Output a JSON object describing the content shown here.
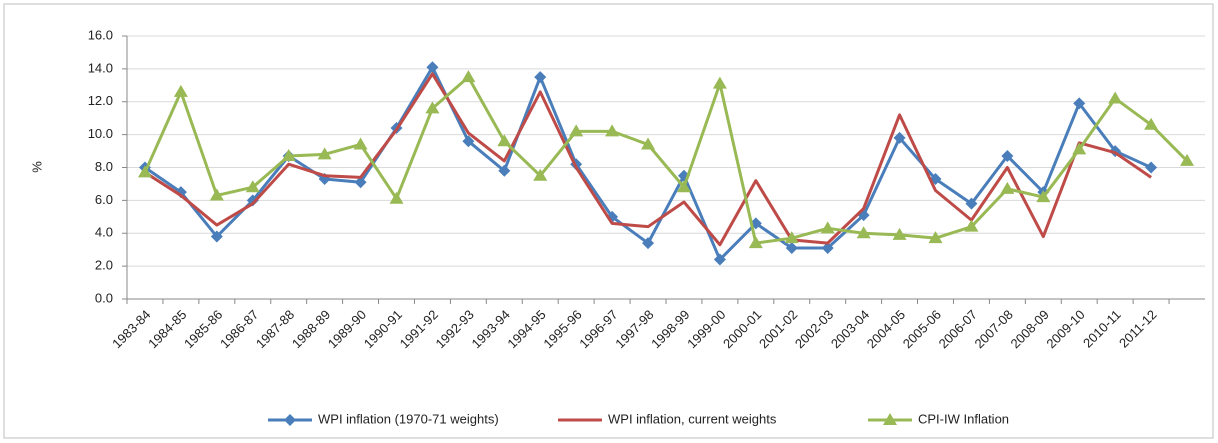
{
  "chart_data": {
    "type": "line",
    "y_label": "%",
    "categories": [
      "1983-84",
      "1984-85",
      "1985-86",
      "1986-87",
      "1987-88",
      "1988-89",
      "1989-90",
      "1990-91",
      "1991-92",
      "1992-93",
      "1993-94",
      "1994-95",
      "1995-96",
      "1996-97",
      "1997-98",
      "1998-99",
      "1999-00",
      "2000-01",
      "2001-02",
      "2002-03",
      "2003-04",
      "2004-05",
      "2005-06",
      "2006-07",
      "2007-08",
      "2008-09",
      "2009-10",
      "2010-11",
      "2011-12",
      null
    ],
    "series": [
      {
        "name": "WPI inflation (1970-71 weights)",
        "color": "#4a7ebb",
        "marker": "diamond",
        "values": [
          8.0,
          6.5,
          3.8,
          6.0,
          8.7,
          7.3,
          7.1,
          10.4,
          14.1,
          9.6,
          7.8,
          13.5,
          8.2,
          5.0,
          3.4,
          7.5,
          2.4,
          4.6,
          3.1,
          3.1,
          5.1,
          9.8,
          7.3,
          5.8,
          8.7,
          6.5,
          11.9,
          9.0,
          8.0,
          null
        ]
      },
      {
        "name": "WPI inflation, current weights",
        "color": "#be4b48",
        "marker": "none",
        "values": [
          7.7,
          6.3,
          4.5,
          5.8,
          8.2,
          7.5,
          7.4,
          10.3,
          13.7,
          10.1,
          8.4,
          12.6,
          8.0,
          4.6,
          4.4,
          5.9,
          3.3,
          7.2,
          3.6,
          3.4,
          5.5,
          11.2,
          6.6,
          4.8,
          8.0,
          3.8,
          9.5,
          8.9,
          7.4,
          null
        ]
      },
      {
        "name": "CPI-IW Inflation",
        "color": "#98b954",
        "marker": "triangle",
        "values": [
          7.7,
          12.6,
          6.3,
          6.8,
          8.7,
          8.8,
          9.4,
          6.1,
          11.6,
          13.5,
          9.6,
          7.5,
          10.2,
          10.2,
          9.4,
          6.8,
          13.1,
          3.4,
          3.7,
          4.3,
          4.0,
          3.9,
          3.7,
          4.4,
          6.7,
          6.2,
          9.1,
          12.2,
          10.6,
          8.4
        ]
      }
    ],
    "ylim": [
      0,
      16
    ],
    "yticks": [
      {
        "value": 0,
        "label": "0.0"
      },
      {
        "value": 2,
        "label": "2.0"
      },
      {
        "value": 4,
        "label": "4.0"
      },
      {
        "value": 6,
        "label": "6.0"
      },
      {
        "value": 8,
        "label": "8.0"
      },
      {
        "value": 10,
        "label": "10.0"
      },
      {
        "value": 12,
        "label": "12.0"
      },
      {
        "value": 14,
        "label": "14.0"
      },
      {
        "value": 16,
        "label": "16.0"
      }
    ],
    "grid": true,
    "legend": "bottom"
  }
}
